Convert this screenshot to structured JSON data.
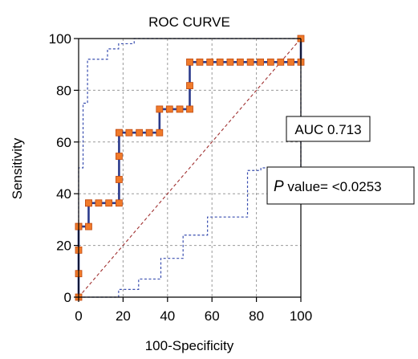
{
  "chart_data": {
    "type": "line",
    "title": "ROC CURVE",
    "xlabel": "100-Specificity",
    "ylabel": "Sensitivity",
    "xlim": [
      0,
      100
    ],
    "ylim": [
      0,
      100
    ],
    "x_ticks": [
      0,
      20,
      40,
      60,
      80,
      100
    ],
    "y_ticks": [
      0,
      20,
      40,
      60,
      80,
      100
    ],
    "grid": true,
    "annotations": {
      "auc": "AUC 0.713",
      "p_value_label": "P",
      "p_value_text": " value= <0.0253"
    },
    "colors": {
      "roc_line": "#2b3a8c",
      "marker_fill": "#f07a2a",
      "marker_stroke": "#c04a10",
      "ci_band": "#3a4fb0",
      "diagonal": "#a03030",
      "grid": "#9a9a9a"
    },
    "series": [
      {
        "role": "roc",
        "x": [
          0,
          0,
          0,
          0,
          0,
          4.5,
          4.5,
          4.5,
          9,
          13.6,
          18.2,
          18.2,
          18.2,
          18.2,
          18.2,
          22.7,
          27.3,
          31.8,
          36.4,
          36.4,
          40.9,
          45.5,
          50,
          50,
          50,
          54.5,
          59.1,
          63.6,
          68.2,
          72.7,
          77.3,
          81.8,
          86.4,
          90.9,
          95.5,
          100,
          100
        ],
        "y": [
          0,
          9.1,
          18.2,
          27.3,
          27.3,
          27.3,
          36.4,
          36.4,
          36.4,
          36.4,
          36.4,
          45.5,
          54.5,
          63.6,
          63.6,
          63.6,
          63.6,
          63.6,
          63.6,
          72.7,
          72.7,
          72.7,
          72.7,
          81.8,
          90.9,
          90.9,
          90.9,
          90.9,
          90.9,
          90.9,
          90.9,
          90.9,
          90.9,
          90.9,
          90.9,
          90.9,
          100
        ]
      },
      {
        "role": "ci_upper",
        "x": [
          0,
          0,
          2,
          2,
          4,
          4,
          13,
          13,
          18,
          18,
          25,
          25,
          100,
          100
        ],
        "y": [
          0,
          50,
          50,
          75,
          75,
          92,
          92,
          96,
          96,
          98,
          98,
          100,
          100,
          100
        ]
      },
      {
        "role": "ci_lower",
        "x": [
          0,
          18,
          18,
          27,
          27,
          37,
          37,
          47,
          47,
          58,
          58,
          76,
          76,
          82,
          82,
          100,
          100
        ],
        "y": [
          0,
          0,
          3,
          3,
          7,
          7,
          15,
          15,
          24,
          24,
          31,
          31,
          49,
          49,
          50,
          50,
          100
        ]
      },
      {
        "role": "chance",
        "x": [
          0,
          100
        ],
        "y": [
          0,
          100
        ]
      }
    ]
  }
}
